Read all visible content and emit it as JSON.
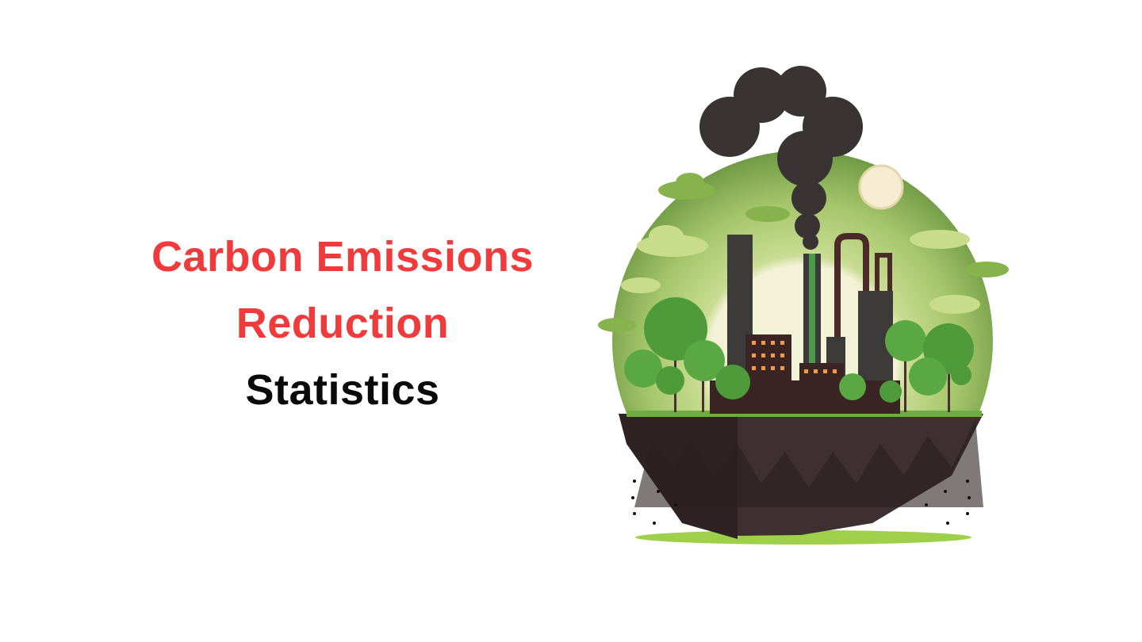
{
  "title": {
    "line1": "Carbon Emissions",
    "line2": "Reduction",
    "line3": "Statistics"
  },
  "colors": {
    "accent": "#ef3b3b",
    "text": "#0a0a0a",
    "globe_green": "#8db85a",
    "smoke": "#3a3334",
    "ground": "#3d2e2f"
  },
  "illustration": "factory-globe-illustration"
}
